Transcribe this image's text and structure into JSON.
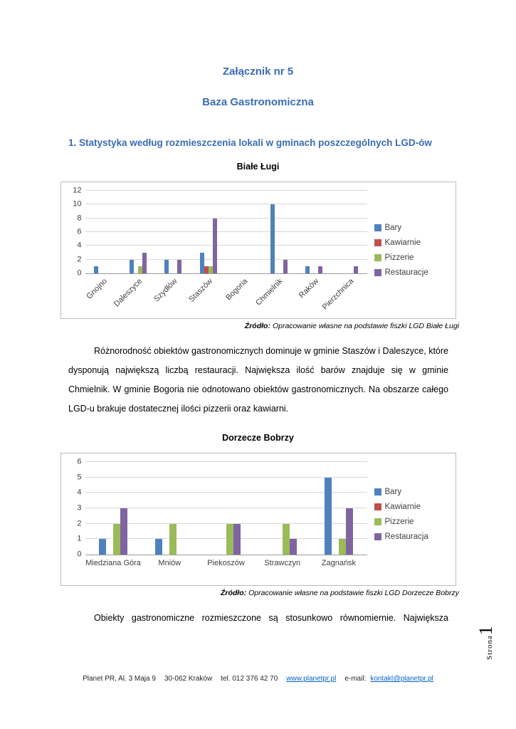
{
  "doc": {
    "title_line1": "Załącznik nr 5",
    "title_line2": "Baza Gastronomiczna",
    "section_heading": "1.  Statystyka według rozmieszczenia lokali w gminach poszczególnych LGD-ów",
    "paragraph1": "Różnorodność obiektów gastronomicznych dominuje w gminie Staszów i Daleszyce, które dysponują największą liczbą restauracji. Największa ilość barów znajduje się w gminie Chmielnik. W gminie Bogoria nie odnotowano obiektów gastronomicznych. Na obszarze całego LGD-u brakuje dostatecznej ilości pizzerii oraz kawiarni.",
    "paragraph2": "Obiekty gastronomiczne rozmieszczone są stosunkowo równomiernie. Największa",
    "sources": [
      {
        "label": "Źródło:",
        "text": "Opracowanie własne na podstawie fiszki LGD Białe Ługi"
      },
      {
        "label": "Źródło:",
        "text": "Opracowanie własne na podstawie fiszki LGD Dorzecze Bobrzy"
      }
    ],
    "page_label": {
      "word": "Strona",
      "number": "1"
    }
  },
  "footer": {
    "address": "Planet PR, Al. 3 Maja 9",
    "city": "30-062 Kraków",
    "phone": "tel. 012 376 42 70",
    "website": "www.planetpr.pl",
    "email_label": "e-mail:",
    "email": "kontakt@planetpr.pl"
  },
  "colors": {
    "heading_blue": "#3a6cb4",
    "link_blue": "#0563c1",
    "bar_blue": "#4F81BD",
    "bar_red": "#C0504D",
    "bar_green": "#9BBB59",
    "bar_purple": "#8064A2"
  },
  "chart_data": [
    {
      "type": "bar",
      "title": "Białe Ługi",
      "categories": [
        "Gnojno",
        "Daleszyce",
        "Szydłów",
        "Staszów",
        "Bogoria",
        "Chmielnik",
        "Raków",
        "Pierzchnica"
      ],
      "series": [
        {
          "name": "Bary",
          "color": "#4F81BD",
          "values": [
            1,
            2,
            2,
            3,
            0,
            10,
            1,
            0
          ]
        },
        {
          "name": "Kawiarnie",
          "color": "#C0504D",
          "values": [
            0,
            0,
            0,
            1,
            0,
            0,
            0,
            0
          ]
        },
        {
          "name": "Pizzerie",
          "color": "#9BBB59",
          "values": [
            0,
            1,
            0,
            1,
            0,
            0,
            0,
            0
          ]
        },
        {
          "name": "Restauracje",
          "color": "#8064A2",
          "values": [
            0,
            3,
            2,
            8,
            0,
            2,
            1,
            1
          ]
        }
      ],
      "xlabel": "",
      "ylabel": "",
      "ylim": [
        0,
        12
      ],
      "ytick_step": 2,
      "grid": true,
      "legend_position": "right",
      "x_label_rotation": -45
    },
    {
      "type": "bar",
      "title": "Dorzecze Bobrzy",
      "categories": [
        "Miedziana Góra",
        "Mniów",
        "Piekoszów",
        "Strawczyn",
        "Zagnańsk"
      ],
      "series": [
        {
          "name": "Bary",
          "color": "#4F81BD",
          "values": [
            1,
            1,
            0,
            0,
            5
          ]
        },
        {
          "name": "Kawiarnie",
          "color": "#C0504D",
          "values": [
            0,
            0,
            0,
            0,
            0
          ]
        },
        {
          "name": "Pizzerie",
          "color": "#9BBB59",
          "values": [
            2,
            2,
            2,
            2,
            1
          ]
        },
        {
          "name": "Restauracja",
          "color": "#8064A2",
          "values": [
            3,
            0,
            2,
            1,
            3
          ]
        }
      ],
      "xlabel": "",
      "ylabel": "",
      "ylim": [
        0,
        6
      ],
      "ytick_step": 1,
      "grid": true,
      "legend_position": "right",
      "x_label_rotation": 0
    }
  ]
}
